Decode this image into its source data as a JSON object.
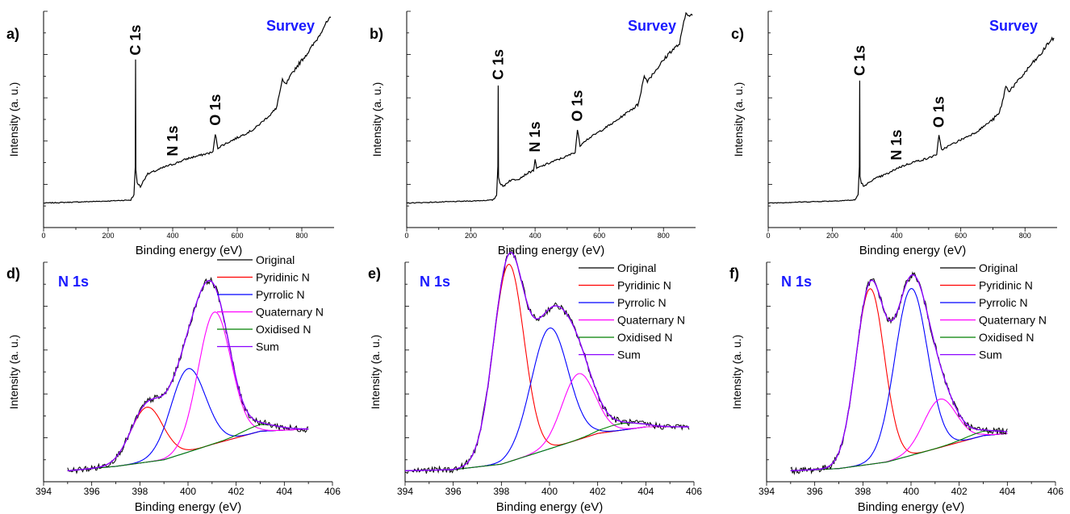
{
  "chart_data": [
    {
      "type": "line",
      "panel_label": "a)",
      "title": "Survey",
      "xlabel": "Binding energy (eV)",
      "ylabel": "Intensity (a. u.)",
      "xlim": [
        0,
        900
      ],
      "xticks": [
        0,
        200,
        400,
        600,
        800
      ],
      "y_tick_labels_shown": false,
      "ylim": [
        0,
        1.06
      ],
      "annotations": [
        {
          "text": "C 1s",
          "x": 285
        },
        {
          "text": "N 1s",
          "x": 400
        },
        {
          "text": "O 1s",
          "x": 532
        }
      ],
      "series": [
        {
          "color": "#000000",
          "x": [
            0,
            100,
            200,
            270,
            280,
            284,
            285,
            286,
            290,
            300,
            320,
            350,
            380,
            400,
            450,
            500,
            525,
            532,
            540,
            550,
            600,
            650,
            700,
            720,
            730,
            740,
            750,
            780,
            800,
            820,
            850,
            870,
            890
          ],
          "y": [
            0.12,
            0.125,
            0.13,
            0.135,
            0.16,
            0.3,
            0.82,
            0.28,
            0.22,
            0.2,
            0.26,
            0.28,
            0.3,
            0.31,
            0.34,
            0.36,
            0.37,
            0.46,
            0.39,
            0.4,
            0.44,
            0.48,
            0.55,
            0.58,
            0.65,
            0.72,
            0.7,
            0.78,
            0.82,
            0.86,
            0.93,
            0.99,
            1.03
          ]
        }
      ]
    },
    {
      "type": "line",
      "panel_label": "b)",
      "title": "Survey",
      "xlabel": "Binding energy (eV)",
      "ylabel": "Intensity (a. u.)",
      "xlim": [
        0,
        900
      ],
      "xticks": [
        0,
        200,
        400,
        600,
        800
      ],
      "y_tick_labels_shown": false,
      "ylim": [
        0,
        1.06
      ],
      "annotations": [
        {
          "text": "C 1s",
          "x": 285
        },
        {
          "text": "N 1s",
          "x": 400
        },
        {
          "text": "O 1s",
          "x": 532
        }
      ],
      "series": [
        {
          "color": "#000000",
          "x": [
            0,
            100,
            200,
            270,
            280,
            284,
            285,
            286,
            290,
            300,
            320,
            350,
            380,
            395,
            400,
            405,
            450,
            500,
            525,
            532,
            540,
            550,
            600,
            650,
            700,
            720,
            730,
            740,
            750,
            780,
            800,
            820,
            850,
            860,
            870,
            890
          ],
          "y": [
            0.12,
            0.125,
            0.13,
            0.135,
            0.16,
            0.3,
            0.7,
            0.25,
            0.22,
            0.2,
            0.23,
            0.24,
            0.27,
            0.28,
            0.33,
            0.29,
            0.32,
            0.35,
            0.37,
            0.48,
            0.4,
            0.42,
            0.47,
            0.52,
            0.58,
            0.6,
            0.67,
            0.74,
            0.72,
            0.78,
            0.82,
            0.86,
            0.9,
            0.98,
            1.05,
            1.04
          ]
        }
      ]
    },
    {
      "type": "line",
      "panel_label": "c)",
      "title": "Survey",
      "xlabel": "Binding energy (eV)",
      "ylabel": "Intensity (a. u.)",
      "xlim": [
        0,
        900
      ],
      "xticks": [
        0,
        200,
        400,
        600,
        800
      ],
      "y_tick_labels_shown": false,
      "ylim": [
        0,
        1.06
      ],
      "annotations": [
        {
          "text": "C 1s",
          "x": 285
        },
        {
          "text": "N 1s",
          "x": 400
        },
        {
          "text": "O 1s",
          "x": 532
        }
      ],
      "series": [
        {
          "color": "#000000",
          "x": [
            0,
            100,
            200,
            270,
            280,
            284,
            285,
            286,
            290,
            300,
            320,
            350,
            380,
            400,
            450,
            500,
            525,
            532,
            540,
            550,
            600,
            650,
            700,
            720,
            730,
            740,
            750,
            780,
            800,
            820,
            850,
            870,
            890
          ],
          "y": [
            0.12,
            0.125,
            0.13,
            0.135,
            0.16,
            0.3,
            0.72,
            0.25,
            0.22,
            0.2,
            0.23,
            0.25,
            0.27,
            0.29,
            0.32,
            0.34,
            0.36,
            0.45,
            0.38,
            0.39,
            0.43,
            0.47,
            0.53,
            0.56,
            0.62,
            0.69,
            0.67,
            0.72,
            0.76,
            0.8,
            0.85,
            0.9,
            0.93
          ]
        }
      ]
    },
    {
      "type": "line",
      "panel_label": "d)",
      "title": "N 1s",
      "xlabel": "Binding energy (eV)",
      "ylabel": "Intensity (a. u.)",
      "xlim": [
        394,
        406
      ],
      "xticks": [
        394,
        396,
        398,
        400,
        402,
        404,
        406
      ],
      "y_tick_labels_shown": false,
      "ylim": [
        0,
        1.0
      ],
      "original_x_range": [
        395,
        405
      ],
      "background": {
        "x": [
          395,
          397,
          399,
          401,
          403,
          405
        ],
        "y": [
          0.05,
          0.07,
          0.1,
          0.17,
          0.23,
          0.24
        ]
      },
      "peaks": [
        {
          "name": "Pyridinic N",
          "color": "#ff0000",
          "center": 398.3,
          "fwhm": 1.6,
          "height": 0.25
        },
        {
          "name": "Pyrrolic N",
          "color": "#0000ff",
          "center": 400.0,
          "fwhm": 1.7,
          "height": 0.38
        },
        {
          "name": "Quaternary N",
          "color": "#ff00ff",
          "center": 401.1,
          "fwhm": 1.6,
          "height": 0.6
        },
        {
          "name": "Oxidised N",
          "color": "#008000",
          "center": 403.0,
          "fwhm": 1.8,
          "height": 0.03
        }
      ],
      "legend": [
        {
          "label": "Original",
          "color": "#000000"
        },
        {
          "label": "Pyridinic N",
          "color": "#ff0000"
        },
        {
          "label": "Pyrrolic N",
          "color": "#0000ff"
        },
        {
          "label": "Quaternary N",
          "color": "#ff00ff"
        },
        {
          "label": "Oxidised N",
          "color": "#008000"
        },
        {
          "label": "Sum",
          "color": "#8a00ff"
        }
      ],
      "legend_placement": "top-right"
    },
    {
      "type": "line",
      "panel_label": "e)",
      "title": "N 1s",
      "xlabel": "Binding energy (eV)",
      "ylabel": "Intensity (a. u.)",
      "xlim": [
        394,
        406
      ],
      "xticks": [
        394,
        396,
        398,
        400,
        402,
        404,
        406
      ],
      "y_tick_labels_shown": false,
      "ylim": [
        0,
        1.0
      ],
      "original_x_range": [
        394,
        405.8
      ],
      "background": {
        "x": [
          394,
          396,
          398,
          400,
          402,
          404,
          405.8
        ],
        "y": [
          0.05,
          0.055,
          0.08,
          0.15,
          0.22,
          0.25,
          0.25
        ]
      },
      "peaks": [
        {
          "name": "Pyridinic N",
          "color": "#ff0000",
          "center": 398.3,
          "fwhm": 1.5,
          "height": 0.9
        },
        {
          "name": "Pyrrolic N",
          "color": "#0000ff",
          "center": 400.0,
          "fwhm": 1.8,
          "height": 0.55
        },
        {
          "name": "Quaternary N",
          "color": "#ff00ff",
          "center": 401.2,
          "fwhm": 1.6,
          "height": 0.3
        },
        {
          "name": "Oxidised N",
          "color": "#008000",
          "center": 403.0,
          "fwhm": 1.8,
          "height": 0.03
        }
      ],
      "legend": [
        {
          "label": "Original",
          "color": "#000000"
        },
        {
          "label": "Pyridinic N",
          "color": "#ff0000"
        },
        {
          "label": "Pyrrolic N",
          "color": "#0000ff"
        },
        {
          "label": "Quaternary N",
          "color": "#ff00ff"
        },
        {
          "label": "Oxidised N",
          "color": "#008000"
        },
        {
          "label": "Sum",
          "color": "#8a00ff"
        }
      ],
      "legend_placement": "top-right"
    },
    {
      "type": "line",
      "panel_label": "f)",
      "title": "N 1s",
      "xlabel": "Binding energy (eV)",
      "ylabel": "Intensity (a. u.)",
      "xlim": [
        394,
        406
      ],
      "xticks": [
        394,
        396,
        398,
        400,
        402,
        404,
        406
      ],
      "y_tick_labels_shown": false,
      "ylim": [
        0,
        1.0
      ],
      "original_x_range": [
        395,
        404
      ],
      "background": {
        "x": [
          395,
          397,
          399,
          401,
          403,
          404
        ],
        "y": [
          0.05,
          0.06,
          0.09,
          0.15,
          0.21,
          0.22
        ]
      },
      "peaks": [
        {
          "name": "Pyridinic N",
          "color": "#ff0000",
          "center": 398.3,
          "fwhm": 1.4,
          "height": 0.8
        },
        {
          "name": "Pyrrolic N",
          "color": "#0000ff",
          "center": 400.0,
          "fwhm": 1.6,
          "height": 0.76
        },
        {
          "name": "Quaternary N",
          "color": "#ff00ff",
          "center": 401.2,
          "fwhm": 1.6,
          "height": 0.22
        },
        {
          "name": "Oxidised N",
          "color": "#008000",
          "center": 403.0,
          "fwhm": 1.8,
          "height": 0.02
        }
      ],
      "legend": [
        {
          "label": "Original",
          "color": "#000000"
        },
        {
          "label": "Pyridinic N",
          "color": "#ff0000"
        },
        {
          "label": "Pyrrolic N",
          "color": "#0000ff"
        },
        {
          "label": "Quaternary N",
          "color": "#ff00ff"
        },
        {
          "label": "Oxidised N",
          "color": "#008000"
        },
        {
          "label": "Sum",
          "color": "#8a00ff"
        }
      ],
      "legend_placement": "top-right"
    }
  ],
  "colors": {
    "title_blue": "#1a1aff",
    "original": "#000000",
    "sum": "#8a00ff"
  }
}
